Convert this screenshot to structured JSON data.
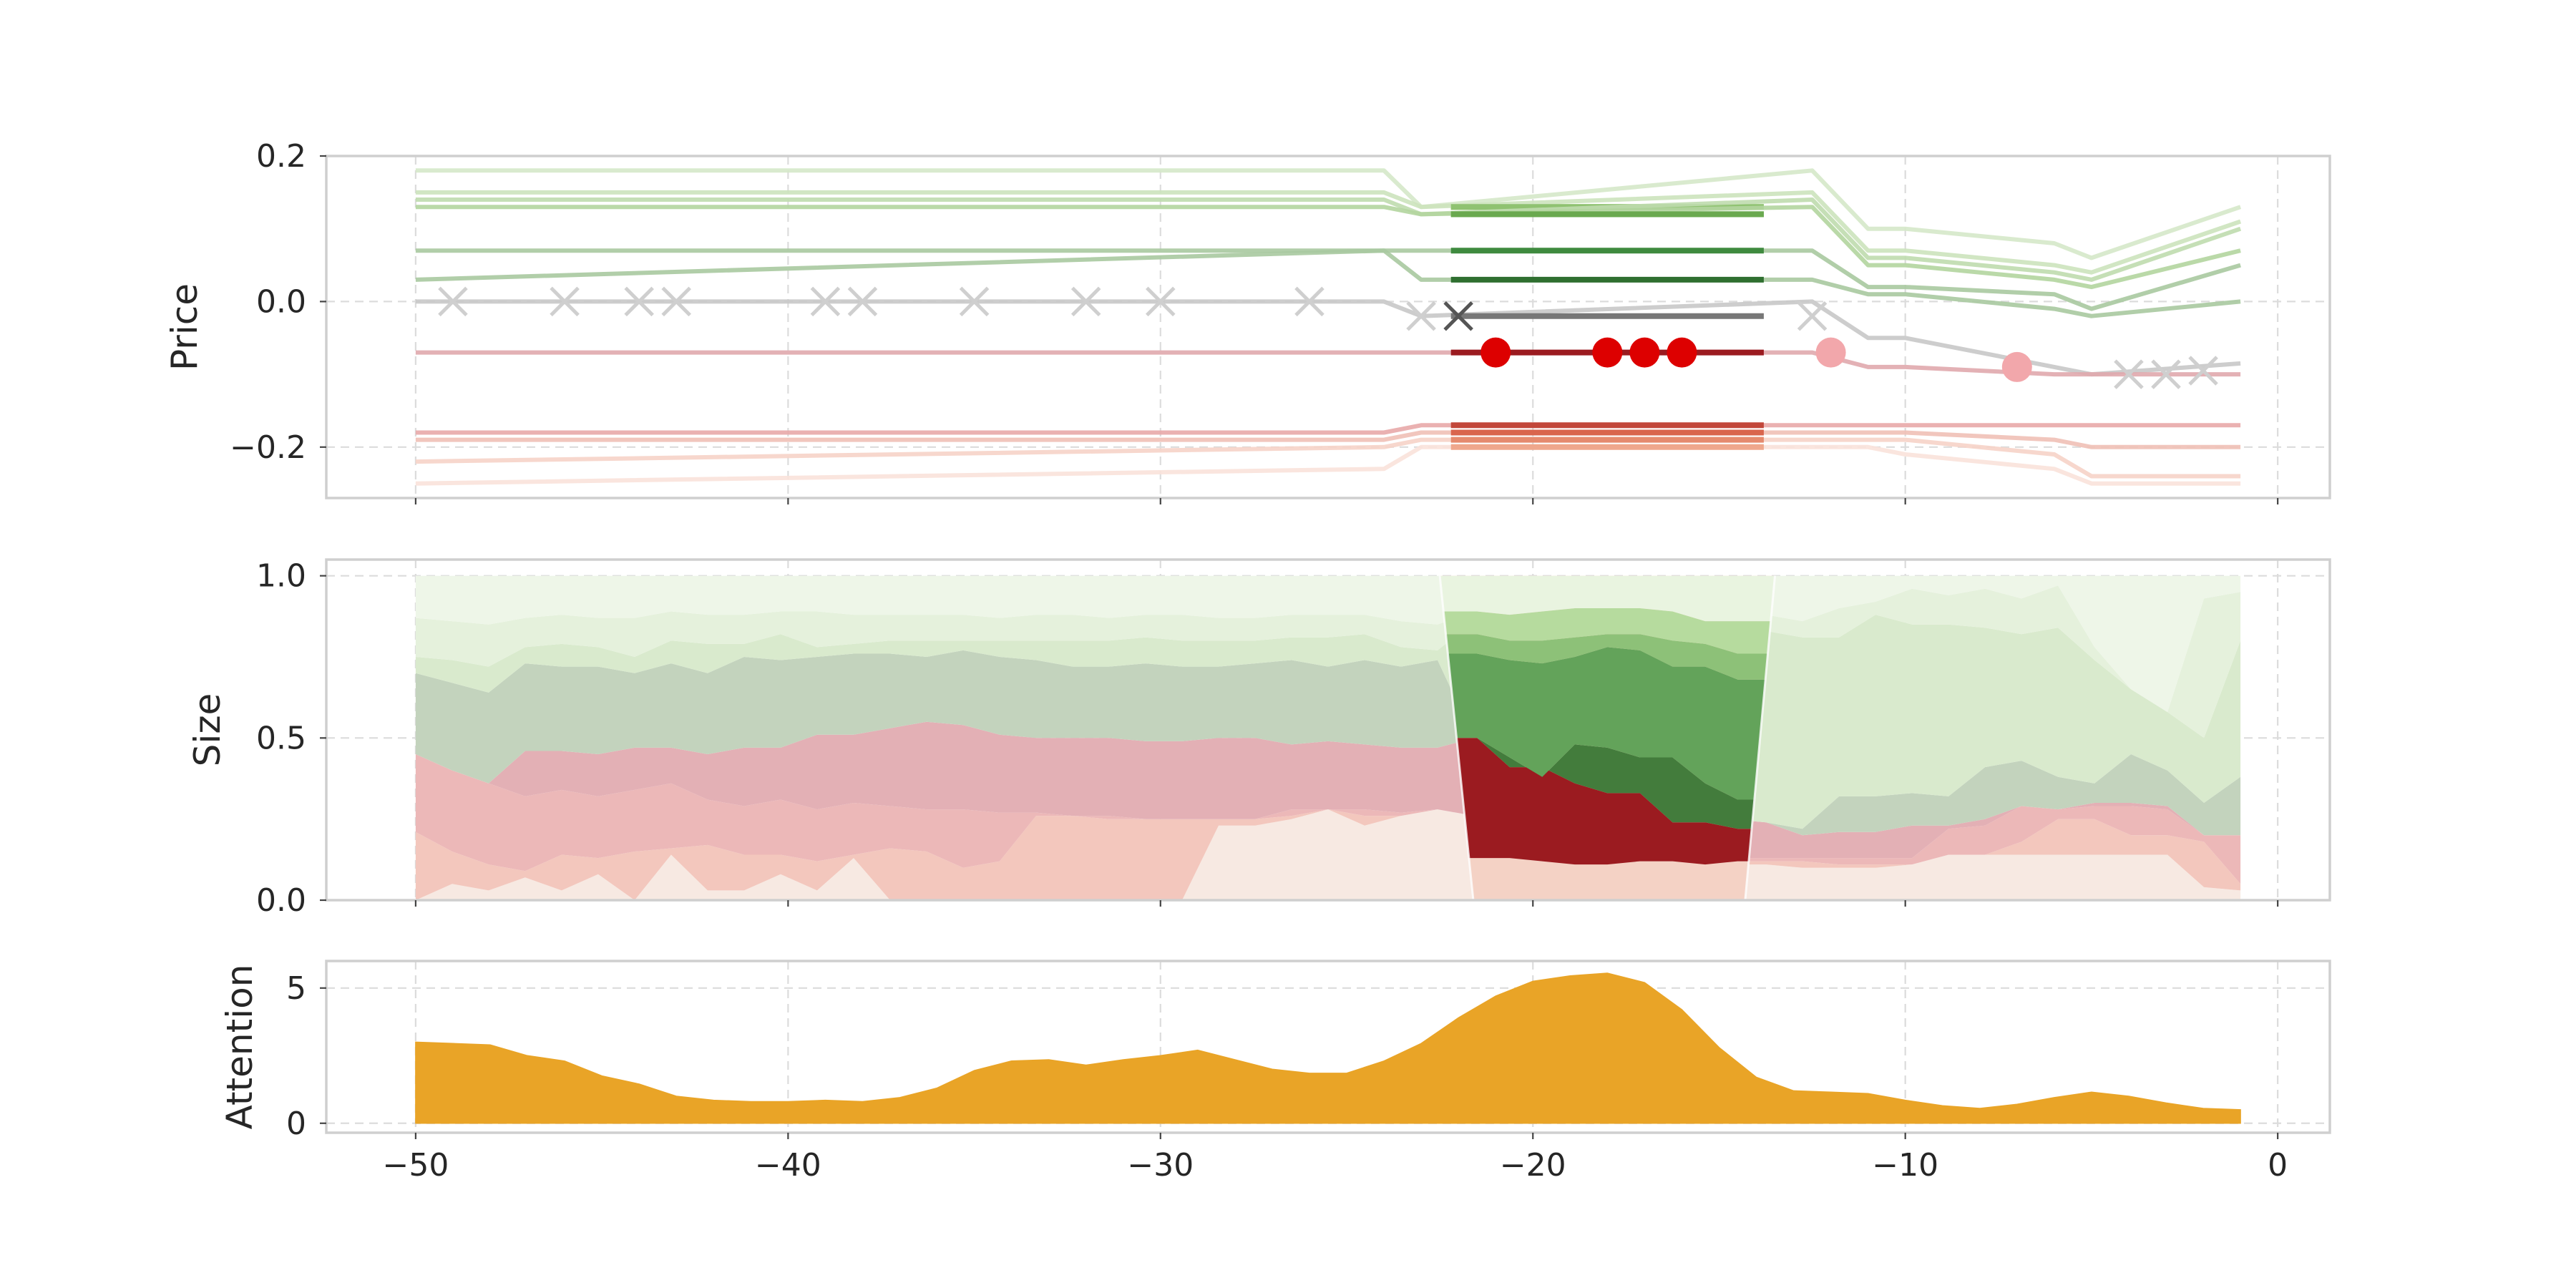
{
  "chart_data": [
    {
      "id": "price",
      "type": "line",
      "ylabel": "Price",
      "xlim": [
        -52.4,
        1.4
      ],
      "ylim": [
        -0.27,
        0.2
      ],
      "x_ticks": [
        -50,
        -40,
        -30,
        -20,
        -10,
        0
      ],
      "y_ticks": [
        {
          "value": 0.2,
          "label": "0.2"
        },
        {
          "value": 0.0,
          "label": "0.0"
        },
        {
          "value": -0.2,
          "label": "−0.2"
        }
      ],
      "grid": true,
      "highlight_window": [
        -22.5,
        -13.5
      ],
      "levels": [
        {
          "base": 0.18,
          "color": "#d5e8c9",
          "hi_color": "#a6d08c",
          "seg": {
            "a": 0.18,
            "b": 0.13,
            "c": 0.18
          },
          "tail": [
            0.1,
            0.1,
            0.08,
            0.06,
            0.13
          ]
        },
        {
          "base": 0.15,
          "color": "#cce3bd",
          "hi_color": "#8fc271",
          "seg": {
            "a": 0.15,
            "b": 0.13,
            "c": 0.15
          },
          "tail": [
            0.07,
            0.07,
            0.05,
            0.04,
            0.11
          ]
        },
        {
          "base": 0.14,
          "color": "#bfdcae",
          "hi_color": "#7bb35d",
          "seg": {
            "a": 0.14,
            "b": 0.12,
            "c": 0.14
          },
          "tail": [
            0.06,
            0.06,
            0.04,
            0.03,
            0.1
          ]
        },
        {
          "base": 0.13,
          "color": "#b3d59f",
          "hi_color": "#6aa94f",
          "seg": {
            "a": 0.13,
            "b": 0.12,
            "c": 0.13
          },
          "tail": [
            0.05,
            0.05,
            0.03,
            0.02,
            0.07
          ]
        },
        {
          "base": 0.07,
          "color": "#a9c9a0",
          "hi_color": "#3f8a3f",
          "seg": {
            "a": 0.07,
            "b": 0.07,
            "c": 0.07
          },
          "tail": [
            0.02,
            0.02,
            0.01,
            -0.01,
            0.05
          ]
        },
        {
          "base": 0.03,
          "color": "#a9c9a0",
          "hi_color": "#2f6f30",
          "seg": {
            "a": 0.07,
            "b": 0.03,
            "c": 0.03
          },
          "tail": [
            0.01,
            0.01,
            -0.01,
            -0.02,
            0.0
          ]
        },
        {
          "base": 0.0,
          "color": "#c8c8c8",
          "hi_color": "#777777",
          "seg": {
            "a": 0.0,
            "b": -0.02,
            "c": 0.0
          },
          "tail": [
            -0.05,
            -0.05,
            -0.09,
            -0.1,
            -0.085
          ]
        },
        {
          "base": -0.07,
          "color": "#e0a9ad",
          "hi_color": "#9b1b20",
          "seg": {
            "a": -0.07,
            "b": -0.07,
            "c": -0.07
          },
          "tail": [
            -0.09,
            -0.09,
            -0.1,
            -0.1,
            -0.1
          ]
        },
        {
          "base": -0.18,
          "color": "#e8a9a9",
          "hi_color": "#c2473a",
          "seg": {
            "a": -0.18,
            "b": -0.17,
            "c": -0.17
          },
          "tail": [
            -0.17,
            -0.17,
            -0.17,
            -0.17,
            -0.17
          ]
        },
        {
          "base": -0.19,
          "color": "#f0c0b6",
          "hi_color": "#d9654d",
          "seg": {
            "a": -0.19,
            "b": -0.18,
            "c": -0.18
          },
          "tail": [
            -0.18,
            -0.18,
            -0.19,
            -0.2,
            -0.2
          ]
        },
        {
          "base": -0.22,
          "color": "#f6d3c8",
          "hi_color": "#e58a6e",
          "seg": {
            "a": -0.2,
            "b": -0.19,
            "c": -0.19
          },
          "tail": [
            -0.19,
            -0.19,
            -0.21,
            -0.24,
            -0.24
          ]
        },
        {
          "base": -0.25,
          "color": "#f9e2da",
          "hi_color": "#efa78c",
          "seg": {
            "a": -0.23,
            "b": -0.2,
            "c": -0.2
          },
          "tail": [
            -0.2,
            -0.21,
            -0.23,
            -0.25,
            -0.25
          ]
        }
      ],
      "x_markers": [
        {
          "x": -49,
          "y": 0.0
        },
        {
          "x": -46,
          "y": 0.0
        },
        {
          "x": -44,
          "y": 0.0
        },
        {
          "x": -43,
          "y": 0.0
        },
        {
          "x": -39,
          "y": 0.0
        },
        {
          "x": -38,
          "y": 0.0
        },
        {
          "x": -35,
          "y": 0.0
        },
        {
          "x": -32,
          "y": 0.0
        },
        {
          "x": -30,
          "y": 0.0
        },
        {
          "x": -26,
          "y": 0.0
        },
        {
          "x": -23,
          "y": -0.02
        },
        {
          "x": -12.5,
          "y": -0.02
        },
        {
          "x": -4,
          "y": -0.1
        },
        {
          "x": -3,
          "y": -0.1
        },
        {
          "x": -2,
          "y": -0.095
        }
      ],
      "x_marker_dark": {
        "x": -22,
        "y": -0.02
      },
      "trade_points": [
        {
          "x": -21,
          "y": -0.07,
          "color": "#dd0000"
        },
        {
          "x": -18,
          "y": -0.07,
          "color": "#dd0000"
        },
        {
          "x": -17,
          "y": -0.07,
          "color": "#dd0000"
        },
        {
          "x": -16,
          "y": -0.07,
          "color": "#dd0000"
        },
        {
          "x": -12,
          "y": -0.07,
          "color": "#f2a7ab"
        },
        {
          "x": -7,
          "y": -0.09,
          "color": "#f2a7ab"
        }
      ]
    },
    {
      "id": "size",
      "type": "area",
      "ylabel": "Size",
      "xlim": [
        -52.4,
        1.4
      ],
      "ylim": [
        0.0,
        1.05
      ],
      "x_ticks": [
        -50,
        -40,
        -30,
        -20,
        -10,
        0
      ],
      "y_ticks": [
        {
          "value": 1.0,
          "label": "1.0"
        },
        {
          "value": 0.5,
          "label": "0.5"
        },
        {
          "value": 0.0,
          "label": "0.0"
        }
      ],
      "grid": true,
      "bands": [
        {
          "color": "#f7e9e2",
          "top": [
            0.0,
            0.05,
            0.03,
            0.07,
            0.03,
            0.08,
            0.0,
            0.14,
            0.03,
            0.03,
            0.08,
            0.03,
            0.13,
            0.0,
            0.0,
            0.0,
            0.0,
            0.0,
            0.0,
            0.0,
            0.0,
            0.0,
            0.23,
            0.23,
            0.25,
            0.28,
            0.23,
            0.26,
            0.28,
            0.26,
            0.15,
            0.13,
            0.12,
            0.12,
            0.11,
            0.11,
            0.11,
            0.11,
            0.1,
            0.1,
            0.1,
            0.11,
            0.14,
            0.14,
            0.14,
            0.14,
            0.14,
            0.14,
            0.14,
            0.04,
            0.03
          ]
        },
        {
          "color": "#f3c7bd",
          "top": [
            0.21,
            0.15,
            0.11,
            0.09,
            0.14,
            0.13,
            0.15,
            0.16,
            0.17,
            0.14,
            0.14,
            0.12,
            0.14,
            0.16,
            0.15,
            0.1,
            0.12,
            0.26,
            0.26,
            0.25,
            0.25,
            0.25,
            0.25,
            0.25,
            0.26,
            0.28,
            0.26,
            0.25,
            0.25,
            0.23,
            0.18,
            0.14,
            0.13,
            0.13,
            0.12,
            0.12,
            0.12,
            0.12,
            0.12,
            0.11,
            0.11,
            0.11,
            0.14,
            0.14,
            0.18,
            0.25,
            0.25,
            0.2,
            0.2,
            0.18,
            0.05
          ]
        },
        {
          "color": "#ecb8b8",
          "top": [
            0.45,
            0.4,
            0.36,
            0.32,
            0.34,
            0.32,
            0.34,
            0.36,
            0.31,
            0.29,
            0.31,
            0.28,
            0.3,
            0.29,
            0.28,
            0.28,
            0.27,
            0.27,
            0.26,
            0.26,
            0.25,
            0.25,
            0.25,
            0.25,
            0.28,
            0.27,
            0.28,
            0.27,
            0.27,
            0.14,
            0.14,
            0.13,
            0.12,
            0.12,
            0.13,
            0.13,
            0.13,
            0.13,
            0.13,
            0.13,
            0.13,
            0.13,
            0.22,
            0.23,
            0.29,
            0.28,
            0.29,
            0.29,
            0.28,
            0.2,
            0.2
          ]
        },
        {
          "color": "#e3b0b5",
          "top": [
            0.45,
            0.4,
            0.36,
            0.46,
            0.46,
            0.45,
            0.47,
            0.47,
            0.45,
            0.47,
            0.47,
            0.51,
            0.51,
            0.53,
            0.55,
            0.54,
            0.51,
            0.5,
            0.5,
            0.5,
            0.49,
            0.49,
            0.5,
            0.5,
            0.48,
            0.49,
            0.48,
            0.47,
            0.47,
            0.5,
            0.42,
            0.42,
            0.36,
            0.33,
            0.33,
            0.24,
            0.25,
            0.24,
            0.2,
            0.21,
            0.21,
            0.23,
            0.23,
            0.25,
            0.29,
            0.28,
            0.3,
            0.3,
            0.29,
            0.19,
            0.19
          ]
        },
        {
          "color": "#c3d3bd",
          "top": [
            0.7,
            0.67,
            0.64,
            0.73,
            0.72,
            0.72,
            0.7,
            0.73,
            0.7,
            0.75,
            0.74,
            0.75,
            0.76,
            0.76,
            0.75,
            0.77,
            0.75,
            0.74,
            0.72,
            0.72,
            0.73,
            0.72,
            0.72,
            0.73,
            0.74,
            0.72,
            0.74,
            0.72,
            0.74,
            0.5,
            0.42,
            0.42,
            0.36,
            0.33,
            0.33,
            0.24,
            0.25,
            0.24,
            0.22,
            0.32,
            0.32,
            0.33,
            0.32,
            0.41,
            0.43,
            0.38,
            0.36,
            0.45,
            0.4,
            0.3,
            0.38
          ]
        },
        {
          "color": "#d9eacd",
          "top": [
            0.75,
            0.74,
            0.72,
            0.78,
            0.79,
            0.78,
            0.75,
            0.8,
            0.79,
            0.79,
            0.82,
            0.78,
            0.79,
            0.8,
            0.8,
            0.8,
            0.8,
            0.8,
            0.8,
            0.8,
            0.81,
            0.8,
            0.8,
            0.8,
            0.81,
            0.81,
            0.82,
            0.78,
            0.77,
            0.86,
            0.88,
            0.88,
            0.88,
            0.88,
            0.86,
            0.86,
            0.84,
            0.83,
            0.81,
            0.81,
            0.88,
            0.85,
            0.85,
            0.84,
            0.82,
            0.84,
            0.74,
            0.65,
            0.58,
            0.5,
            0.8
          ]
        },
        {
          "color": "#e5f1dc",
          "top": [
            0.87,
            0.86,
            0.85,
            0.87,
            0.88,
            0.87,
            0.87,
            0.89,
            0.88,
            0.88,
            0.89,
            0.89,
            0.88,
            0.88,
            0.88,
            0.88,
            0.87,
            0.88,
            0.88,
            0.87,
            0.88,
            0.88,
            0.87,
            0.87,
            0.88,
            0.88,
            0.88,
            0.86,
            0.85,
            0.89,
            0.9,
            0.9,
            0.9,
            0.9,
            0.9,
            0.89,
            0.89,
            0.88,
            0.86,
            0.9,
            0.92,
            0.96,
            0.94,
            0.96,
            0.93,
            0.97,
            0.78,
            0.6,
            0.5,
            0.93,
            0.95
          ]
        },
        {
          "color": "#eef6e8",
          "top": [
            1.0,
            1.0,
            1.0,
            1.0,
            1.0,
            1.0,
            1.0,
            1.0,
            1.0,
            1.0,
            1.0,
            1.0,
            1.0,
            1.0,
            1.0,
            1.0,
            1.0,
            1.0,
            1.0,
            1.0,
            1.0,
            1.0,
            1.0,
            1.0,
            1.0,
            1.0,
            1.0,
            1.0,
            1.0,
            1.0,
            1.0,
            1.0,
            1.0,
            1.0,
            1.0,
            1.0,
            1.0,
            1.0,
            1.0,
            1.0,
            1.0,
            1.0,
            1.0,
            1.0,
            1.0,
            1.0,
            1.0,
            1.0,
            1.0,
            1.0,
            1.0
          ]
        }
      ],
      "highlight_bands": [
        {
          "color": "#9b1b20",
          "bottom": [
            0.13,
            0.13,
            0.12,
            0.11,
            0.11,
            0.12,
            0.12,
            0.11,
            0.12
          ],
          "top": [
            0.5,
            0.41,
            0.41,
            0.36,
            0.33,
            0.33,
            0.24,
            0.24,
            0.22
          ]
        },
        {
          "color": "#437c3c",
          "bottom": [
            0.5,
            0.41,
            0.41,
            0.36,
            0.33,
            0.33,
            0.24,
            0.24,
            0.22
          ],
          "top": [
            0.5,
            0.44,
            0.38,
            0.48,
            0.47,
            0.44,
            0.44,
            0.36,
            0.31
          ]
        },
        {
          "color": "#63a35a",
          "bottom": [
            0.5,
            0.44,
            0.38,
            0.48,
            0.47,
            0.44,
            0.44,
            0.36,
            0.31
          ],
          "top": [
            0.76,
            0.74,
            0.73,
            0.75,
            0.78,
            0.77,
            0.72,
            0.72,
            0.68
          ]
        },
        {
          "color": "#8dc178",
          "bottom": [
            0.76,
            0.74,
            0.73,
            0.75,
            0.78,
            0.77,
            0.72,
            0.72,
            0.68
          ],
          "top": [
            0.82,
            0.8,
            0.8,
            0.81,
            0.82,
            0.82,
            0.8,
            0.79,
            0.76
          ]
        },
        {
          "color": "#b6db9e",
          "bottom": [
            0.82,
            0.8,
            0.8,
            0.81,
            0.82,
            0.82,
            0.8,
            0.79,
            0.76
          ],
          "top": [
            0.89,
            0.88,
            0.89,
            0.9,
            0.9,
            0.9,
            0.89,
            0.86,
            0.86
          ]
        },
        {
          "color": "#e9f4e0",
          "bottom": [
            0.89,
            0.88,
            0.89,
            0.9,
            0.9,
            0.9,
            0.89,
            0.86,
            0.86
          ],
          "top": [
            1.0,
            1.0,
            1.0,
            1.0,
            1.0,
            1.0,
            1.0,
            1.0,
            1.0
          ]
        }
      ],
      "highlight_window": [
        -22.5,
        -13.5
      ]
    },
    {
      "id": "attention",
      "type": "area",
      "ylabel": "Attention",
      "xlim": [
        -52.4,
        1.4
      ],
      "ylim": [
        -0.35,
        6.0
      ],
      "x_ticks": [
        -50,
        -40,
        -30,
        -20,
        -10,
        0
      ],
      "x_tick_labels": [
        "−50",
        "−40",
        "−30",
        "−20",
        "−10",
        "0"
      ],
      "y_ticks": [
        {
          "value": 5,
          "label": "5"
        },
        {
          "value": 0,
          "label": "0"
        }
      ],
      "grid": true,
      "color": "#e9a427",
      "x": [
        -50,
        -49,
        -48,
        -47,
        -46,
        -45,
        -44,
        -43,
        -42,
        -41,
        -40,
        -39,
        -38,
        -37,
        -36,
        -35,
        -34,
        -33,
        -32,
        -31,
        -30,
        -29,
        -28,
        -27,
        -26,
        -25,
        -24,
        -23,
        -22,
        -21,
        -20,
        -19,
        -18,
        -17,
        -16,
        -15,
        -14,
        -13,
        -12,
        -11,
        -10,
        -9,
        -8,
        -7,
        -6,
        -5,
        -4,
        -3,
        -2,
        -1
      ],
      "values": [
        3.0,
        2.95,
        2.9,
        2.5,
        2.3,
        1.75,
        1.45,
        1.0,
        0.85,
        0.8,
        0.8,
        0.85,
        0.8,
        0.95,
        1.3,
        1.95,
        2.3,
        2.35,
        2.15,
        2.35,
        2.5,
        2.7,
        2.35,
        2.0,
        1.85,
        1.85,
        2.3,
        2.95,
        3.9,
        4.7,
        5.25,
        5.45,
        5.55,
        5.2,
        4.2,
        2.8,
        1.7,
        1.2,
        1.15,
        1.1,
        0.85,
        0.65,
        0.55,
        0.7,
        0.95,
        1.15,
        1.0,
        0.75,
        0.55,
        0.5
      ]
    }
  ]
}
